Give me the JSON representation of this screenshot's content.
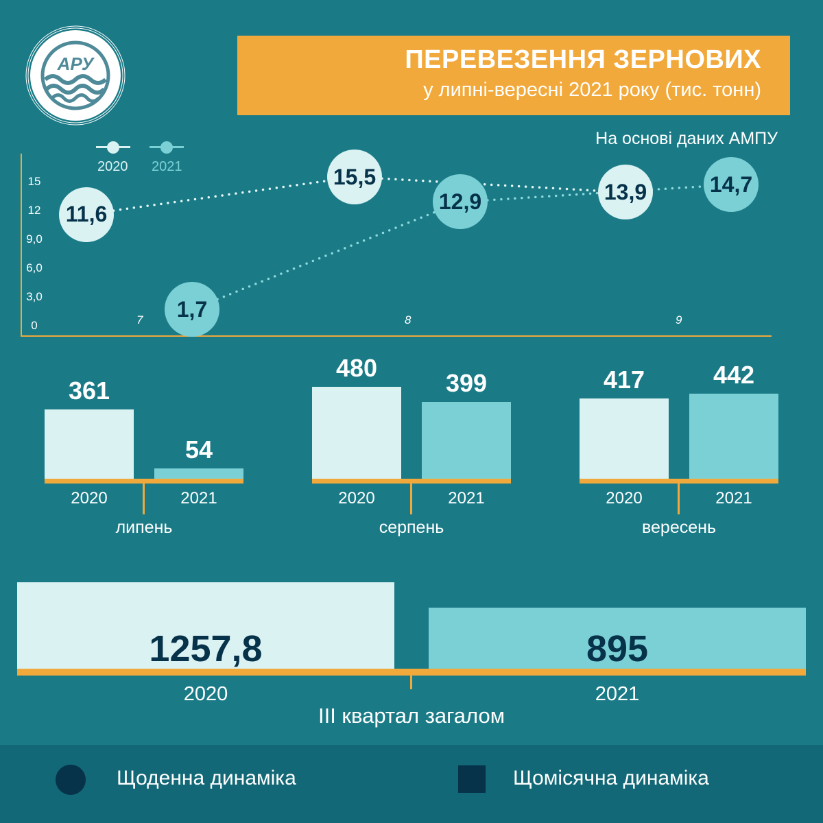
{
  "logo": {
    "text": "АРУ"
  },
  "header": {
    "title": "ПЕРЕВЕЗЕННЯ ЗЕРНОВИХ",
    "subtitle": "у липні-вересні 2021 року (тис. тонн)",
    "source": "На основі даних АМПУ"
  },
  "colors": {
    "background": "#1a7b87",
    "series_2020": "#dbf2f3",
    "series_2021": "#7bd0d6",
    "accent": "#f2a93b",
    "dark": "#06324a",
    "footer": "#126876"
  },
  "chart_data": [
    {
      "type": "line",
      "title": "",
      "legend": {
        "placement": "top-left",
        "entries": [
          "2020",
          "2021"
        ]
      },
      "x": [
        "7",
        "8",
        "9"
      ],
      "yticks": [
        "0",
        "3,0",
        "6,0",
        "9,0",
        "12",
        "15"
      ],
      "ylim": [
        0,
        15
      ],
      "series": [
        {
          "name": "2020",
          "values": [
            11.6,
            15.5,
            13.9
          ],
          "labels": [
            "11,6",
            "15,5",
            "13,9"
          ]
        },
        {
          "name": "2021",
          "values": [
            1.7,
            12.9,
            14.7
          ],
          "labels": [
            "1,7",
            "12,9",
            "14,7"
          ]
        }
      ]
    },
    {
      "type": "bar",
      "categories": [
        "липень",
        "серпень",
        "вересень"
      ],
      "series": [
        {
          "name": "2020",
          "values": [
            361,
            480,
            417
          ]
        },
        {
          "name": "2021",
          "values": [
            54,
            399,
            442
          ]
        }
      ]
    },
    {
      "type": "bar",
      "title": "III квартал загалом",
      "categories": [
        "2020",
        "2021"
      ],
      "values": [
        1257.8,
        895
      ],
      "labels": [
        "1257,8",
        "895"
      ]
    }
  ],
  "footer": {
    "daily": "Щоденна динаміка",
    "monthly": "Щомісячна динаміка"
  }
}
